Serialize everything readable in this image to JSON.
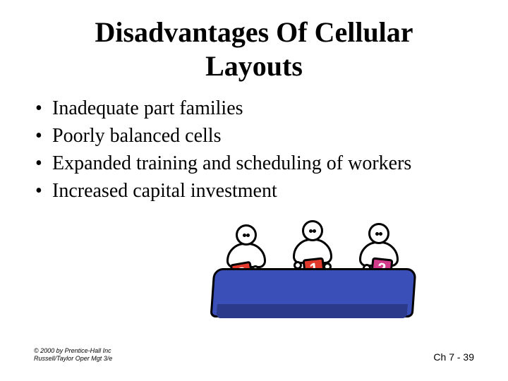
{
  "title_line1": "Disadvantages Of Cellular",
  "title_line2": "Layouts",
  "bullets": [
    "Inadequate part families",
    "Poorly balanced cells",
    "Expanded training and scheduling of workers",
    "Increased capital investment"
  ],
  "footer": {
    "copyright": "© 2000 by Prentice-Hall Inc",
    "source": "Russell/Taylor Oper Mgt 3/e",
    "page": "Ch 7 - 39"
  },
  "illustration": {
    "desk_color": "#3a4fb8",
    "cards": [
      {
        "value": "3",
        "bg": "#e23b2e"
      },
      {
        "value": "1",
        "bg": "#e23b2e"
      },
      {
        "value": "2",
        "bg": "#d23a8a"
      }
    ]
  }
}
